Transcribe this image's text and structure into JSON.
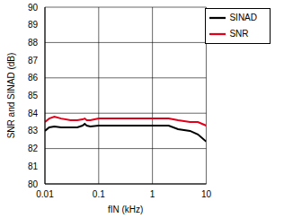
{
  "chart_data": {
    "type": "line",
    "x_label": "fIN (kHz)",
    "y_label": "SNR and SINAD (dB)",
    "x": [
      0.01,
      0.012,
      0.015,
      0.02,
      0.03,
      0.04,
      0.05,
      0.055,
      0.06,
      0.07,
      0.1,
      0.2,
      0.5,
      1,
      2,
      3,
      5,
      7,
      10
    ],
    "series": [
      {
        "name": "SINAD",
        "color": "#000000",
        "values": [
          83.0,
          83.2,
          83.25,
          83.2,
          83.2,
          83.2,
          83.3,
          83.4,
          83.3,
          83.25,
          83.3,
          83.3,
          83.3,
          83.3,
          83.3,
          83.1,
          83.0,
          82.8,
          82.4
        ]
      },
      {
        "name": "SNR",
        "color": "#e0001a",
        "values": [
          83.5,
          83.7,
          83.8,
          83.7,
          83.6,
          83.6,
          83.65,
          83.7,
          83.6,
          83.6,
          83.7,
          83.7,
          83.7,
          83.7,
          83.7,
          83.6,
          83.5,
          83.5,
          83.3
        ]
      }
    ],
    "xlim": [
      0.01,
      10
    ],
    "xticks": [
      0.01,
      0.1,
      1,
      10
    ],
    "ylim": [
      80,
      90
    ],
    "yticks": [
      80,
      81,
      82,
      83,
      84,
      85,
      86,
      87,
      88,
      89,
      90
    ],
    "log": "x",
    "grid": true,
    "legend": "upper right"
  }
}
